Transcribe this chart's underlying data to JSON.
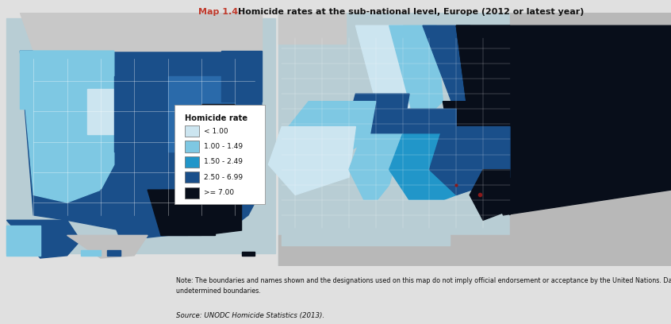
{
  "title_bold": "Map 1.4:",
  "title_normal": "  Homicide rates at the sub-national level, Europe (2012 or latest year)",
  "legend_title": "Homicide rate",
  "legend_items": [
    {
      "label": "< 1.00",
      "color": "#cce5f0"
    },
    {
      "label": "1.00 - 1.49",
      "color": "#7ec8e3"
    },
    {
      "label": "1.50 - 2.49",
      "color": "#2196c9"
    },
    {
      "label": "2.50 - 6.99",
      "color": "#1a4f8a"
    },
    {
      "label": ">= 7.00",
      "color": "#080e1a"
    }
  ],
  "note_text": "Note: The boundaries and names shown and the designations used on this map do not imply official endorsement or acceptance by the United Nations. Dashed lines represent\nundetermined boundaries.",
  "source_text": "Source: UNODC Homicide Statistics (2013).",
  "bg_color": "#e0e0e0",
  "title_color_bold": "#c0392b",
  "title_color_normal": "#111111",
  "note_fontsize": 5.8,
  "source_fontsize": 6.2,
  "title_fontsize": 8.0,
  "legend_title_fontsize": 7.2,
  "legend_label_fontsize": 6.5,
  "ocean_color": "#b8cdd4",
  "usa_bg": "#1a4f8a",
  "europe_ocean": "#b8cdd4"
}
